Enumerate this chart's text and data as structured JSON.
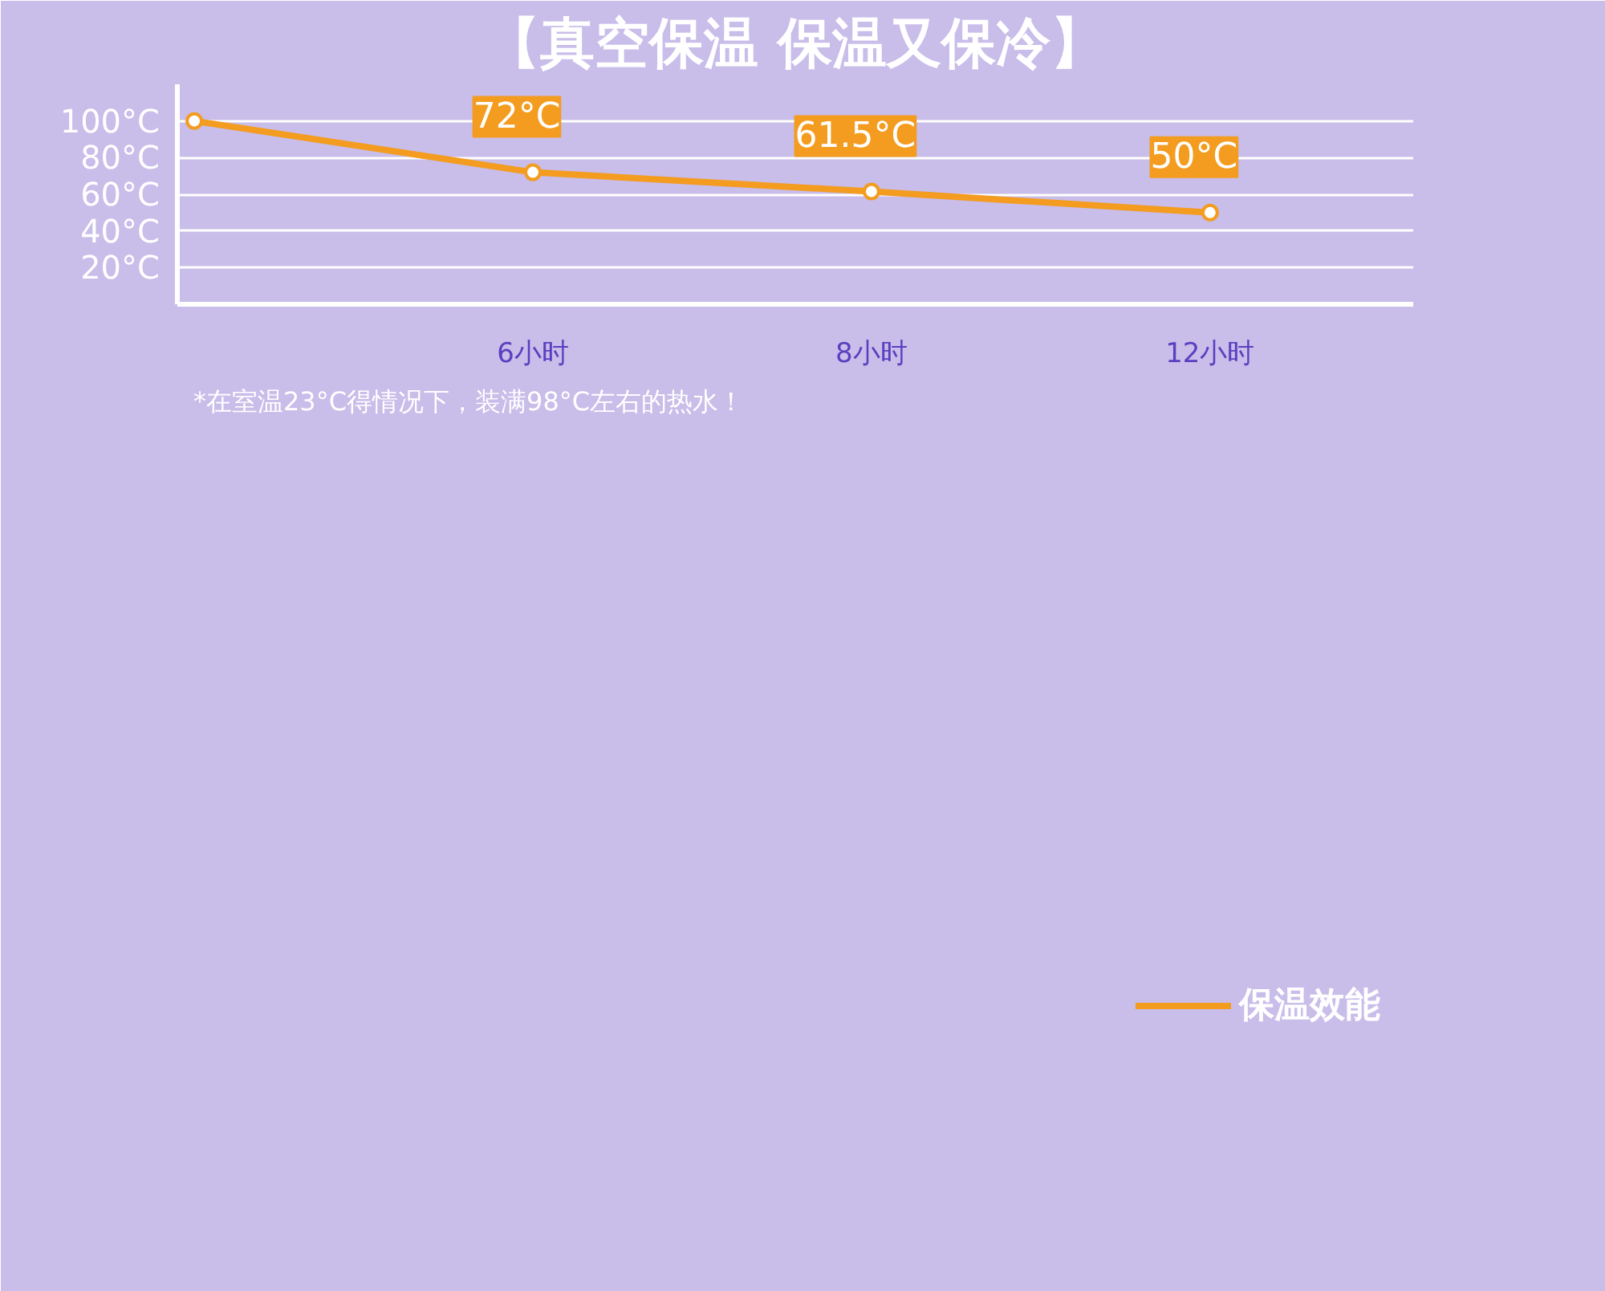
{
  "chart_data": {
    "type": "line",
    "title": "【真空保温 保温又保冷】",
    "categories": [
      null,
      "6小时",
      "8小时",
      "12小时"
    ],
    "series": [
      {
        "name": "保温效能",
        "color": "#f39c1f",
        "values": [
          100,
          72,
          61.5,
          50
        ],
        "value_labels": [
          null,
          "72°C",
          "61.5°C",
          "50°C"
        ]
      }
    ],
    "ylim": [
      0,
      120
    ],
    "yticks": [
      {
        "value": 20,
        "label": "20°C"
      },
      {
        "value": 40,
        "label": "40°C"
      },
      {
        "value": 60,
        "label": "60°C"
      },
      {
        "value": 80,
        "label": "80°C"
      },
      {
        "value": 100,
        "label": "100°C"
      }
    ],
    "grid": "y",
    "legend": "bottom right",
    "marker": "circle",
    "line_style": "solid",
    "annotations": [
      "*在室温23°C得情况下，装满98°C左右的热水！"
    ]
  }
}
